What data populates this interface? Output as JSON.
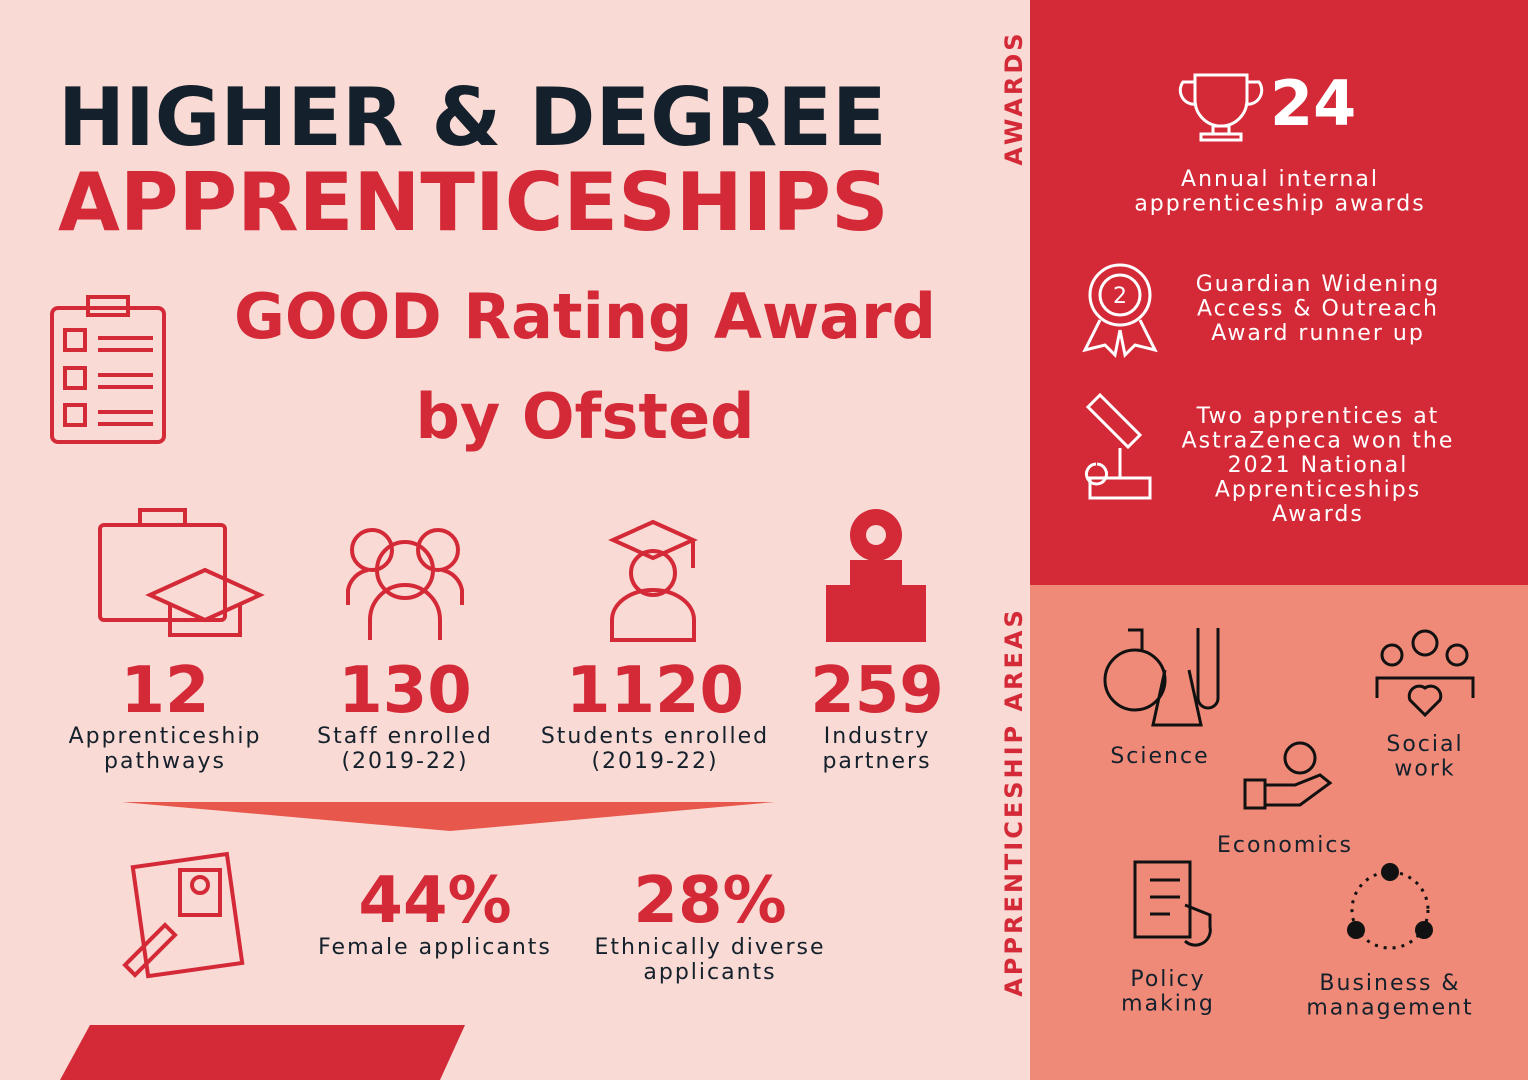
{
  "header": {
    "title_line1": "HIGHER & DEGREE",
    "title_line2": "APPRENTICESHIPS"
  },
  "rating": {
    "line1": "GOOD Rating Award",
    "line2": "by Ofsted"
  },
  "stats": [
    {
      "value": "12",
      "label_lines": [
        "Apprenticeship",
        "pathways"
      ]
    },
    {
      "value": "130",
      "label_lines": [
        "Staff enrolled",
        "(2019-22)"
      ]
    },
    {
      "value": "1120",
      "label_lines": [
        "Students enrolled",
        "(2019-22)"
      ]
    },
    {
      "value": "259",
      "label_lines": [
        "Industry",
        "partners"
      ]
    }
  ],
  "applicants": [
    {
      "value": "44%",
      "label_lines": [
        "Female applicants"
      ]
    },
    {
      "value": "28%",
      "label_lines": [
        "Ethnically diverse",
        "applicants"
      ]
    }
  ],
  "awards": {
    "section_label": "AWARDS",
    "count": "24",
    "items": [
      {
        "lines": [
          "Annual internal",
          "apprenticeship awards"
        ]
      },
      {
        "lines": [
          "Guardian Widening",
          "Access & Outreach",
          "Award runner up"
        ]
      },
      {
        "lines": [
          "Two apprentices at",
          "AstraZeneca won the",
          "2021 National",
          "Apprenticeships",
          "Awards"
        ]
      }
    ]
  },
  "areas": {
    "section_label": "APPRENTICESHIP AREAS",
    "items": [
      {
        "lines": [
          "Science"
        ]
      },
      {
        "lines": [
          "Social",
          "work"
        ]
      },
      {
        "lines": [
          "Economics"
        ]
      },
      {
        "lines": [
          "Policy",
          "making"
        ]
      },
      {
        "lines": [
          "Business &",
          "management"
        ]
      }
    ]
  }
}
